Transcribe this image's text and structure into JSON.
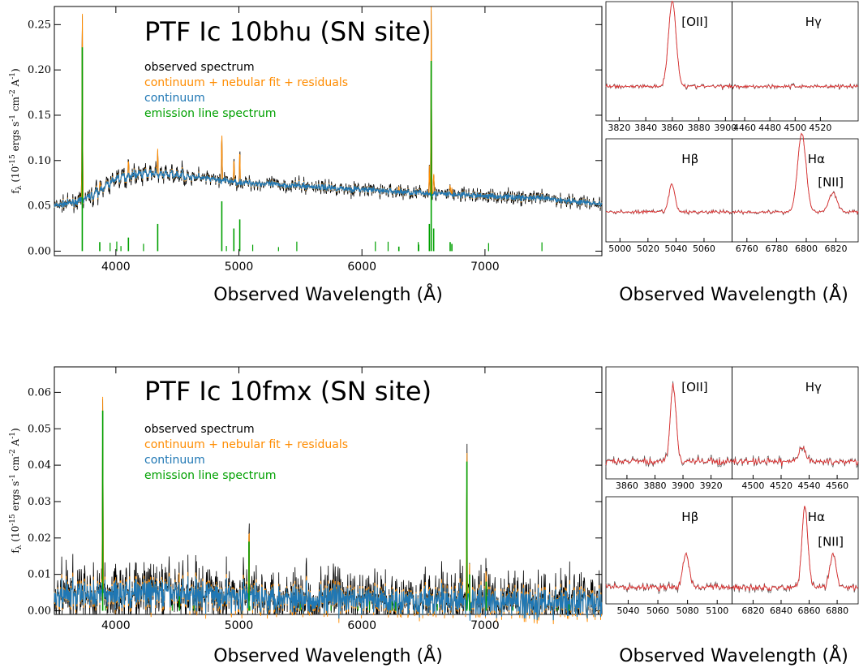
{
  "chart_data": [
    {
      "type": "line",
      "title": "PTF Ic 10bhu (SN site)",
      "xlabel": "Observed Wavelength (Å)",
      "ylabel": "f_λ (10^-15 ergs s^-1 cm^-2 A^-1)",
      "ylabel_parts": {
        "main": "f",
        "sub": "λ",
        "unit_a": " (10",
        "exp1": "-15",
        "unit_b": " ergs s",
        "exp2": "-1",
        "unit_c": " cm",
        "exp3": "-2",
        "unit_d": " A",
        "exp4": "-1",
        "unit_e": ")"
      },
      "xlim": [
        3500,
        7950
      ],
      "ylim": [
        -0.005,
        0.27
      ],
      "xticks": [
        "4000",
        "5000",
        "6000",
        "7000"
      ],
      "yticks": [
        "0.00",
        "0.05",
        "0.10",
        "0.15",
        "0.20",
        "0.25"
      ],
      "grid": false,
      "legend_position": "top-left",
      "series": [
        {
          "name": "observed spectrum",
          "color": "#000000"
        },
        {
          "name": "continuum + nebular fit + residuals",
          "color": "#ff8c00"
        },
        {
          "name": "continuum",
          "color": "#1f77b4"
        },
        {
          "name": "emission line spectrum",
          "color": "#00a000"
        }
      ],
      "continuum": {
        "x": [
          3500,
          3700,
          3850,
          4000,
          4200,
          4500,
          5000,
          5500,
          6000,
          6500,
          7000,
          7500,
          7950
        ],
        "y": [
          0.05,
          0.055,
          0.065,
          0.08,
          0.086,
          0.084,
          0.076,
          0.072,
          0.068,
          0.064,
          0.061,
          0.058,
          0.052
        ]
      },
      "emission_lines": {
        "x": [
          3727,
          3869,
          4102,
          4340,
          4861,
          4959,
          5007,
          6300,
          6548,
          6563,
          6583,
          6717,
          6731
        ],
        "y": [
          0.225,
          0.01,
          0.015,
          0.03,
          0.055,
          0.025,
          0.035,
          0.005,
          0.03,
          0.21,
          0.025,
          0.01,
          0.008
        ]
      },
      "noise": 0.008,
      "insets": [
        {
          "label": "[OII]",
          "ticks": [
            "3820",
            "3840",
            "3860",
            "3880",
            "3900"
          ],
          "range": [
            3810,
            3905
          ],
          "line": 3860,
          "height": 0.8,
          "width": 4,
          "baseline": 0.3
        },
        {
          "label": "Hγ",
          "ticks": [
            "4460",
            "4480",
            "4500",
            "4520"
          ],
          "range": [
            4450,
            4550
          ],
          "line": null,
          "height": 0,
          "width": 4,
          "baseline": 0.3
        },
        {
          "label": "Hβ",
          "ticks": [
            "5000",
            "5020",
            "5040",
            "5060"
          ],
          "range": [
            4990,
            5080
          ],
          "line": 5037,
          "height": 0.3,
          "width": 3,
          "baseline": 0.3
        },
        {
          "label": "Hα",
          "label2": "[NII]",
          "ticks": [
            "6760",
            "6780",
            "6800",
            "6820"
          ],
          "range": [
            6750,
            6835
          ],
          "line": 6797,
          "line2": 6818,
          "height": 0.85,
          "height2": 0.2,
          "width": 4,
          "baseline": 0.3
        }
      ]
    },
    {
      "type": "line",
      "title": "PTF Ic 10fmx (SN site)",
      "xlabel": "Observed Wavelength (Å)",
      "ylabel": "f_λ (10^-15 ergs s^-1 cm^-2 A^-1)",
      "ylabel_parts": {
        "main": "f",
        "sub": "λ",
        "unit_a": " (10",
        "exp1": "-15",
        "unit_b": " ergs s",
        "exp2": "-1",
        "unit_c": " cm",
        "exp3": "-2",
        "unit_d": " A",
        "exp4": "-1",
        "unit_e": ")"
      },
      "xlim": [
        3500,
        7950
      ],
      "ylim": [
        -0.001,
        0.067
      ],
      "xticks": [
        "4000",
        "5000",
        "6000",
        "7000"
      ],
      "yticks": [
        "0.00",
        "0.01",
        "0.02",
        "0.03",
        "0.04",
        "0.05",
        "0.06"
      ],
      "grid": false,
      "legend_position": "top-left",
      "series": [
        {
          "name": "observed spectrum",
          "color": "#000000"
        },
        {
          "name": "continuum + nebular fit + residuals",
          "color": "#ff8c00"
        },
        {
          "name": "continuum",
          "color": "#1f77b4"
        },
        {
          "name": "emission line spectrum",
          "color": "#00a000"
        }
      ],
      "continuum": {
        "x": [
          3500,
          3800,
          4200,
          4600,
          5000,
          5500,
          6000,
          6500,
          7000,
          7500,
          7950
        ],
        "y": [
          0.004,
          0.0045,
          0.005,
          0.0048,
          0.004,
          0.0035,
          0.003,
          0.0028,
          0.0025,
          0.0022,
          0.002
        ]
      },
      "emission_lines": {
        "x": [
          3893,
          4517,
          5082,
          6853,
          6875,
          7010
        ],
        "y": [
          0.055,
          0.004,
          0.019,
          0.041,
          0.01,
          0.008
        ]
      },
      "noise": 0.009,
      "insets": [
        {
          "label": "[OII]",
          "ticks": [
            "3860",
            "3880",
            "3900",
            "3920"
          ],
          "range": [
            3845,
            3935
          ],
          "line": 3893,
          "height": 0.75,
          "width": 3,
          "baseline": 0.15
        },
        {
          "label": "Hγ",
          "ticks": [
            "4500",
            "4520",
            "4540",
            "4560"
          ],
          "range": [
            4485,
            4575
          ],
          "line": 4535,
          "height": 0.15,
          "width": 3,
          "baseline": 0.15
        },
        {
          "label": "Hβ",
          "ticks": [
            "5040",
            "5060",
            "5080",
            "5100"
          ],
          "range": [
            5025,
            5110
          ],
          "line": 5079,
          "height": 0.35,
          "width": 3,
          "baseline": 0.15
        },
        {
          "label": "Hα",
          "label2": "[NII]",
          "ticks": [
            "6820",
            "6840",
            "6860",
            "6880"
          ],
          "range": [
            6805,
            6895
          ],
          "line": 6857,
          "line2": 6877,
          "height": 0.85,
          "height2": 0.35,
          "width": 3,
          "baseline": 0.15
        }
      ]
    }
  ]
}
